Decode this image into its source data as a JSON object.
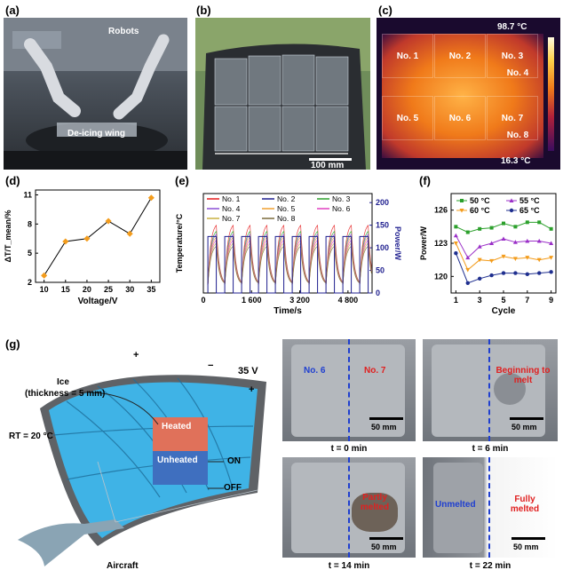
{
  "panels": {
    "a": {
      "label": "(a)",
      "robots": "Robots",
      "wing": "De-icing wing"
    },
    "b": {
      "label": "(b)",
      "scale": "100 mm"
    },
    "c": {
      "label": "(c)",
      "tmax": "98.7 °C",
      "tmin": "16.3 °C",
      "cells": [
        "No. 1",
        "No. 2",
        "No. 3",
        "No. 4",
        "No. 5",
        "No. 6",
        "No. 7",
        "No. 8"
      ]
    },
    "d": {
      "label": "(d)"
    },
    "e": {
      "label": "(e)"
    },
    "f": {
      "label": "(f)"
    },
    "g": {
      "label": "(g)",
      "ice": "Ice",
      "thickness": "(thickness = 5 mm)",
      "voltage": "35 V",
      "rt": "RT = 20 °C",
      "heated": "Heated",
      "unheated": "Unheated",
      "on": "ON",
      "off": "OFF",
      "plus": "+",
      "minus": "−",
      "aircraft": "Aircraft"
    },
    "photos": [
      {
        "time": "t = 0 min",
        "scale": "50 mm",
        "left": "No. 6",
        "right": "No. 7"
      },
      {
        "time": "t = 6 min",
        "scale": "50 mm",
        "right": "Beginning to melt"
      },
      {
        "time": "t = 14 min",
        "scale": "50 mm",
        "right": "Partly melted"
      },
      {
        "time": "t = 22 min",
        "scale": "50 mm",
        "left": "Unmelted",
        "right": "Fully melted"
      }
    ]
  },
  "chart_data": [
    {
      "type": "line",
      "xlabel": "Voltage/V",
      "ylabel": "ΔT/T_mean/%",
      "x": [
        10,
        15,
        20,
        25,
        30,
        35
      ],
      "y": [
        2.7,
        6.2,
        6.5,
        8.3,
        7.0,
        10.7
      ],
      "xlim": [
        8,
        37
      ],
      "ylim": [
        2,
        11.5
      ],
      "xticks": [
        10,
        15,
        20,
        25,
        30,
        35
      ],
      "yticks": [
        2,
        5,
        8,
        11
      ],
      "color": "#f39c1c"
    },
    {
      "type": "line",
      "xlabel": "Time/s",
      "ylabel": "Temperature/°C",
      "ylabel2": "Power/W",
      "xticks": [
        "0",
        "1 600",
        "3 200",
        "4 800"
      ],
      "xtick_values": [
        0,
        1600,
        3200,
        4800
      ],
      "xlim": [
        0,
        5600
      ],
      "y2ticks": [
        0,
        50,
        100,
        150,
        200
      ],
      "y2lim": [
        0,
        220
      ],
      "cycles": 10,
      "cycle_period": 560,
      "series": [
        {
          "name": "No. 1",
          "color": "#e41a1c"
        },
        {
          "name": "No. 2",
          "color": "#1f1f8f"
        },
        {
          "name": "No. 3",
          "color": "#2ca02c"
        },
        {
          "name": "No. 4",
          "color": "#8a4fd6"
        },
        {
          "name": "No. 5",
          "color": "#f0a030"
        },
        {
          "name": "No. 6",
          "color": "#e040c0"
        },
        {
          "name": "No. 7",
          "color": "#c8b040"
        },
        {
          "name": "No. 8",
          "color": "#7a6a3a"
        }
      ],
      "power_color": "#1f1f8f",
      "power_high": 125,
      "power_low": 0
    },
    {
      "type": "line",
      "xlabel": "Cycle",
      "ylabel": "Power/W",
      "x": [
        1,
        2,
        3,
        4,
        5,
        6,
        7,
        8,
        9
      ],
      "xticks": [
        1,
        3,
        5,
        7,
        9
      ],
      "yticks": [
        120,
        123,
        126
      ],
      "ylim": [
        118.5,
        127.5
      ],
      "series": [
        {
          "name": "50 °C",
          "color": "#2ca02c",
          "marker": "square",
          "values": [
            124.5,
            124.0,
            124.3,
            124.4,
            124.8,
            124.5,
            124.9,
            124.9,
            124.3
          ]
        },
        {
          "name": "55 °C",
          "color": "#9b30c8",
          "marker": "triangle",
          "values": [
            123.7,
            121.7,
            122.7,
            123.0,
            123.4,
            123.1,
            123.2,
            123.2,
            123.0
          ]
        },
        {
          "name": "60 °C",
          "color": "#f39c1c",
          "marker": "triangle-down",
          "values": [
            123.0,
            120.6,
            121.5,
            121.4,
            121.8,
            121.6,
            121.7,
            121.5,
            121.7
          ]
        },
        {
          "name": "65 °C",
          "color": "#1f2f8f",
          "marker": "circle",
          "values": [
            122.1,
            119.4,
            119.8,
            120.1,
            120.3,
            120.3,
            120.2,
            120.3,
            120.4
          ]
        }
      ]
    }
  ]
}
